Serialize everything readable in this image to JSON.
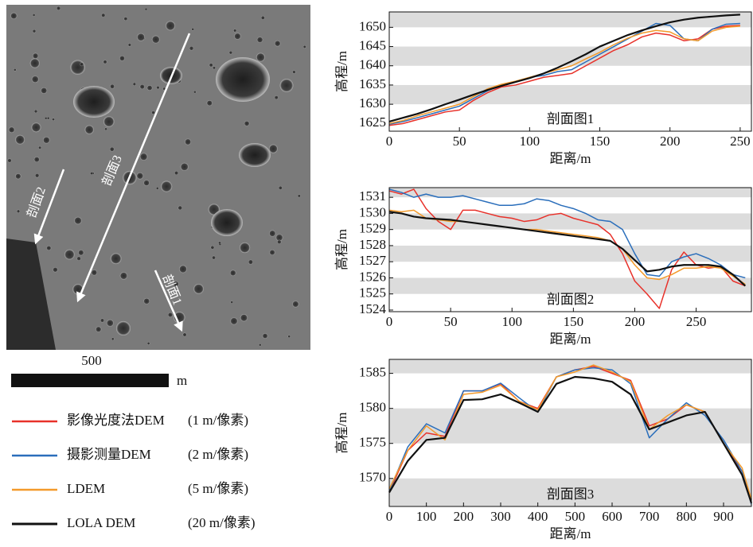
{
  "map": {
    "profiles": [
      {
        "label": "剖面1"
      },
      {
        "label": "剖面2"
      },
      {
        "label": "剖面3"
      }
    ],
    "scale_label": "500",
    "scale_unit": "m"
  },
  "chart_data": [
    {
      "type": "line",
      "title": "剖面图1",
      "xlabel": "距离/m",
      "ylabel": "高程/m",
      "x": [
        0,
        10,
        20,
        30,
        40,
        50,
        60,
        70,
        80,
        90,
        100,
        110,
        120,
        130,
        140,
        150,
        160,
        170,
        180,
        190,
        200,
        210,
        220,
        230,
        240,
        250
      ],
      "series": [
        {
          "name": "影像光度法DEM",
          "resolution": "(1 m/像素)",
          "color": "#e8312a",
          "values": [
            1624.5,
            1625,
            1626,
            1627,
            1628,
            1628.5,
            1631,
            1633,
            1634.5,
            1635,
            1636,
            1637,
            1637.5,
            1638,
            1640,
            1642,
            1644,
            1645.5,
            1647.5,
            1648.5,
            1648,
            1646.5,
            1647,
            1649.5,
            1650.3,
            1650.5
          ]
        },
        {
          "name": "摄影测量DEM",
          "resolution": "(2 m/像素)",
          "color": "#2a6ebb",
          "values": [
            1624.8,
            1625.5,
            1626.5,
            1627.5,
            1628.5,
            1629.5,
            1631.5,
            1633.5,
            1635,
            1635.8,
            1637,
            1637.5,
            1638.5,
            1639,
            1641,
            1643,
            1645,
            1647,
            1649,
            1651,
            1650.5,
            1647,
            1646.5,
            1649.5,
            1650.8,
            1651
          ]
        },
        {
          "name": "LDEM",
          "resolution": "(5 m/像素)",
          "color": "#f39a2b",
          "values": [
            1625,
            1625.8,
            1627,
            1628,
            1629,
            1630,
            1632,
            1634,
            1635.2,
            1636,
            1637,
            1638,
            1639,
            1640,
            1641.8,
            1643.5,
            1645.5,
            1647.2,
            1648.5,
            1649.2,
            1648.8,
            1647,
            1646.5,
            1649,
            1650,
            1650.3
          ]
        },
        {
          "name": "LOLA DEM",
          "resolution": "(20 m/像素)",
          "color": "#111111",
          "values": [
            1625.5,
            1626.5,
            1627.5,
            1628.7,
            1630,
            1631.2,
            1632.5,
            1633.7,
            1634.8,
            1635.8,
            1636.8,
            1638,
            1639.5,
            1641.2,
            1643,
            1645,
            1646.5,
            1648,
            1649.2,
            1650.3,
            1651.3,
            1652,
            1652.5,
            1652.8,
            1653.1,
            1653.3
          ]
        }
      ],
      "xlim": [
        0,
        258
      ],
      "xticks": [
        0,
        50,
        100,
        150,
        200,
        250
      ],
      "ylim": [
        1623,
        1654
      ],
      "yticks": [
        1625,
        1630,
        1635,
        1640,
        1645,
        1650
      ],
      "bands": [
        [
          1630,
          1635
        ],
        [
          1640,
          1645
        ],
        [
          1650,
          1654
        ]
      ],
      "band_color": "#dcdcdc"
    },
    {
      "type": "line",
      "title": "剖面图2",
      "xlabel": "距离/m",
      "ylabel": "高程/m",
      "x": [
        0,
        10,
        20,
        30,
        40,
        50,
        60,
        70,
        80,
        90,
        100,
        110,
        120,
        130,
        140,
        150,
        160,
        170,
        180,
        190,
        200,
        210,
        220,
        230,
        240,
        250,
        260,
        270,
        280,
        290
      ],
      "series": [
        {
          "color": "#e8312a",
          "values": [
            1531.4,
            1531.2,
            1531.5,
            1530.3,
            1529.5,
            1529,
            1530.2,
            1530.2,
            1530,
            1529.8,
            1529.7,
            1529.5,
            1529.6,
            1529.9,
            1530,
            1529.7,
            1529.5,
            1529.3,
            1528.7,
            1527.5,
            1525.8,
            1525,
            1524.1,
            1526.5,
            1527.6,
            1526.8,
            1526.6,
            1526.7,
            1525.8,
            1525.5
          ]
        },
        {
          "color": "#2a6ebb",
          "values": [
            1531.5,
            1531.3,
            1531,
            1531.2,
            1531,
            1531,
            1531.1,
            1530.9,
            1530.7,
            1530.5,
            1530.5,
            1530.6,
            1530.9,
            1530.8,
            1530.5,
            1530.3,
            1530,
            1529.6,
            1529.5,
            1529,
            1527.5,
            1526.2,
            1526.1,
            1527,
            1527.3,
            1527.5,
            1527.2,
            1526.8,
            1526.2,
            1526
          ]
        },
        {
          "color": "#f39a2b",
          "values": [
            1530.2,
            1530.1,
            1530.2,
            1529.7,
            1529.6,
            1529.5,
            1529.5,
            1529.4,
            1529.3,
            1529.2,
            1529.1,
            1529,
            1529,
            1528.9,
            1528.8,
            1528.7,
            1528.6,
            1528.5,
            1528.3,
            1527.8,
            1526.8,
            1526,
            1525.9,
            1526.2,
            1526.6,
            1526.6,
            1526.7,
            1526.6,
            1526.1,
            1525.6
          ]
        },
        {
          "color": "#111111",
          "values": [
            1530.1,
            1530,
            1529.8,
            1529.7,
            1529.65,
            1529.6,
            1529.5,
            1529.4,
            1529.3,
            1529.2,
            1529.1,
            1529,
            1528.9,
            1528.8,
            1528.7,
            1528.6,
            1528.5,
            1528.4,
            1528.3,
            1527.8,
            1527.1,
            1526.4,
            1526.5,
            1526.7,
            1526.8,
            1526.8,
            1526.8,
            1526.7,
            1526.2,
            1525.5
          ]
        }
      ],
      "xlim": [
        0,
        295
      ],
      "xticks": [
        0,
        50,
        100,
        150,
        200,
        250
      ],
      "ylim": [
        1523.9,
        1531.6
      ],
      "yticks": [
        1524,
        1525,
        1526,
        1527,
        1528,
        1529,
        1530,
        1531
      ],
      "bands": [
        [
          1525,
          1526
        ],
        [
          1527,
          1528
        ],
        [
          1529,
          1530
        ],
        [
          1531,
          1531.6
        ]
      ],
      "band_color": "#dcdcdc"
    },
    {
      "type": "line",
      "title": "剖面图3",
      "xlabel": "距离/m",
      "ylabel": "高程/m",
      "x": [
        0,
        50,
        100,
        150,
        200,
        250,
        300,
        350,
        400,
        450,
        500,
        550,
        600,
        650,
        700,
        750,
        800,
        850,
        900,
        950,
        975
      ],
      "series": [
        {
          "color": "#e8312a",
          "values": [
            1568,
            1574,
            1576.5,
            1576,
            1582.5,
            1582.5,
            1583.5,
            1581,
            1580,
            1584.5,
            1585.5,
            1586,
            1585,
            1584,
            1577.5,
            1578.5,
            1580.5,
            1579.5,
            1575,
            1571,
            1566.5
          ]
        },
        {
          "color": "#2a6ebb",
          "values": [
            1568.2,
            1574.5,
            1577.8,
            1576.5,
            1582.5,
            1582.5,
            1583.6,
            1581.5,
            1579.5,
            1584.5,
            1585.5,
            1585.8,
            1585.5,
            1583.5,
            1575.8,
            1578.5,
            1580.8,
            1579,
            1575.5,
            1571,
            1566.3
          ]
        },
        {
          "color": "#f39a2b",
          "values": [
            1568.5,
            1574,
            1577.5,
            1575.5,
            1582,
            1582.3,
            1583.3,
            1581,
            1579.8,
            1584.5,
            1585.2,
            1586.2,
            1585.2,
            1583.8,
            1577,
            1579,
            1580.5,
            1579.5,
            1575,
            1571.5,
            1567
          ]
        },
        {
          "color": "#111111",
          "values": [
            1568,
            1572.5,
            1575.5,
            1575.8,
            1581.2,
            1581.3,
            1582,
            1580.8,
            1579.5,
            1583.5,
            1584.5,
            1584.3,
            1583.8,
            1582,
            1577,
            1578,
            1579,
            1579.5,
            1575,
            1570.5,
            1566.5
          ]
        }
      ],
      "xlim": [
        0,
        975
      ],
      "xticks": [
        0,
        100,
        200,
        300,
        400,
        500,
        600,
        700,
        800,
        900
      ],
      "ylim": [
        1566,
        1587
      ],
      "yticks": [
        1570,
        1575,
        1580,
        1585
      ],
      "bands": [
        [
          1566,
          1570
        ],
        [
          1575,
          1580
        ],
        [
          1585,
          1587
        ]
      ],
      "band_color": "#dcdcdc"
    }
  ]
}
